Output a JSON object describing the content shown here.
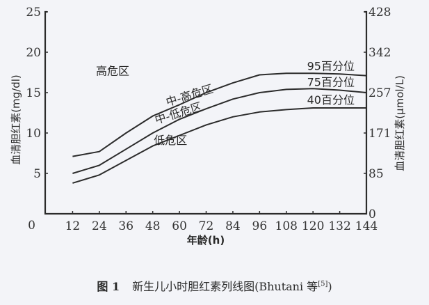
{
  "chart_data": {
    "type": "line",
    "title": "",
    "caption": {
      "figure_number": "图 1",
      "text": "新生儿小时胆红素列线图(Bhutani 等",
      "ref": "[5]",
      "close": ")"
    },
    "xlabel": "年龄(h)",
    "ylabel": "血清胆红素(mg/dl)",
    "y2label": "血清胆红素(μmol/L)",
    "xlim": [
      0,
      144
    ],
    "ylim": [
      0,
      25
    ],
    "x_ticks": [
      12,
      24,
      36,
      48,
      60,
      72,
      84,
      96,
      108,
      120,
      132,
      144
    ],
    "x_origin_label": "0",
    "y_ticks": [
      0,
      5,
      10,
      15,
      20,
      25
    ],
    "y2_ticks": [
      0,
      85,
      171,
      257,
      342,
      428
    ],
    "grid": false,
    "x": [
      12,
      24,
      36,
      48,
      60,
      72,
      84,
      96,
      108,
      120,
      132,
      144
    ],
    "series": [
      {
        "name": "95百分位",
        "values": [
          7.1,
          7.7,
          10.0,
          12.1,
          13.5,
          15.0,
          16.2,
          17.2,
          17.4,
          17.4,
          17.3,
          17.1
        ]
      },
      {
        "name": "75百分位",
        "values": [
          5.0,
          6.0,
          8.0,
          10.0,
          11.7,
          13.0,
          14.2,
          15.0,
          15.4,
          15.5,
          15.3,
          15.0
        ]
      },
      {
        "name": "40百分位",
        "values": [
          3.8,
          4.8,
          6.6,
          8.4,
          9.7,
          11.0,
          12.0,
          12.6,
          12.9,
          13.1,
          13.1,
          13.1
        ]
      }
    ],
    "zones": [
      {
        "name": "高危区",
        "x": 30,
        "y": 17.2
      },
      {
        "name": "中-高危区",
        "x": 65,
        "y": 14.2
      },
      {
        "name": "中-低危区",
        "x": 60,
        "y": 12.0
      },
      {
        "name": "低危区",
        "x": 56,
        "y": 8.6
      }
    ],
    "legend_position": "inline-right"
  }
}
